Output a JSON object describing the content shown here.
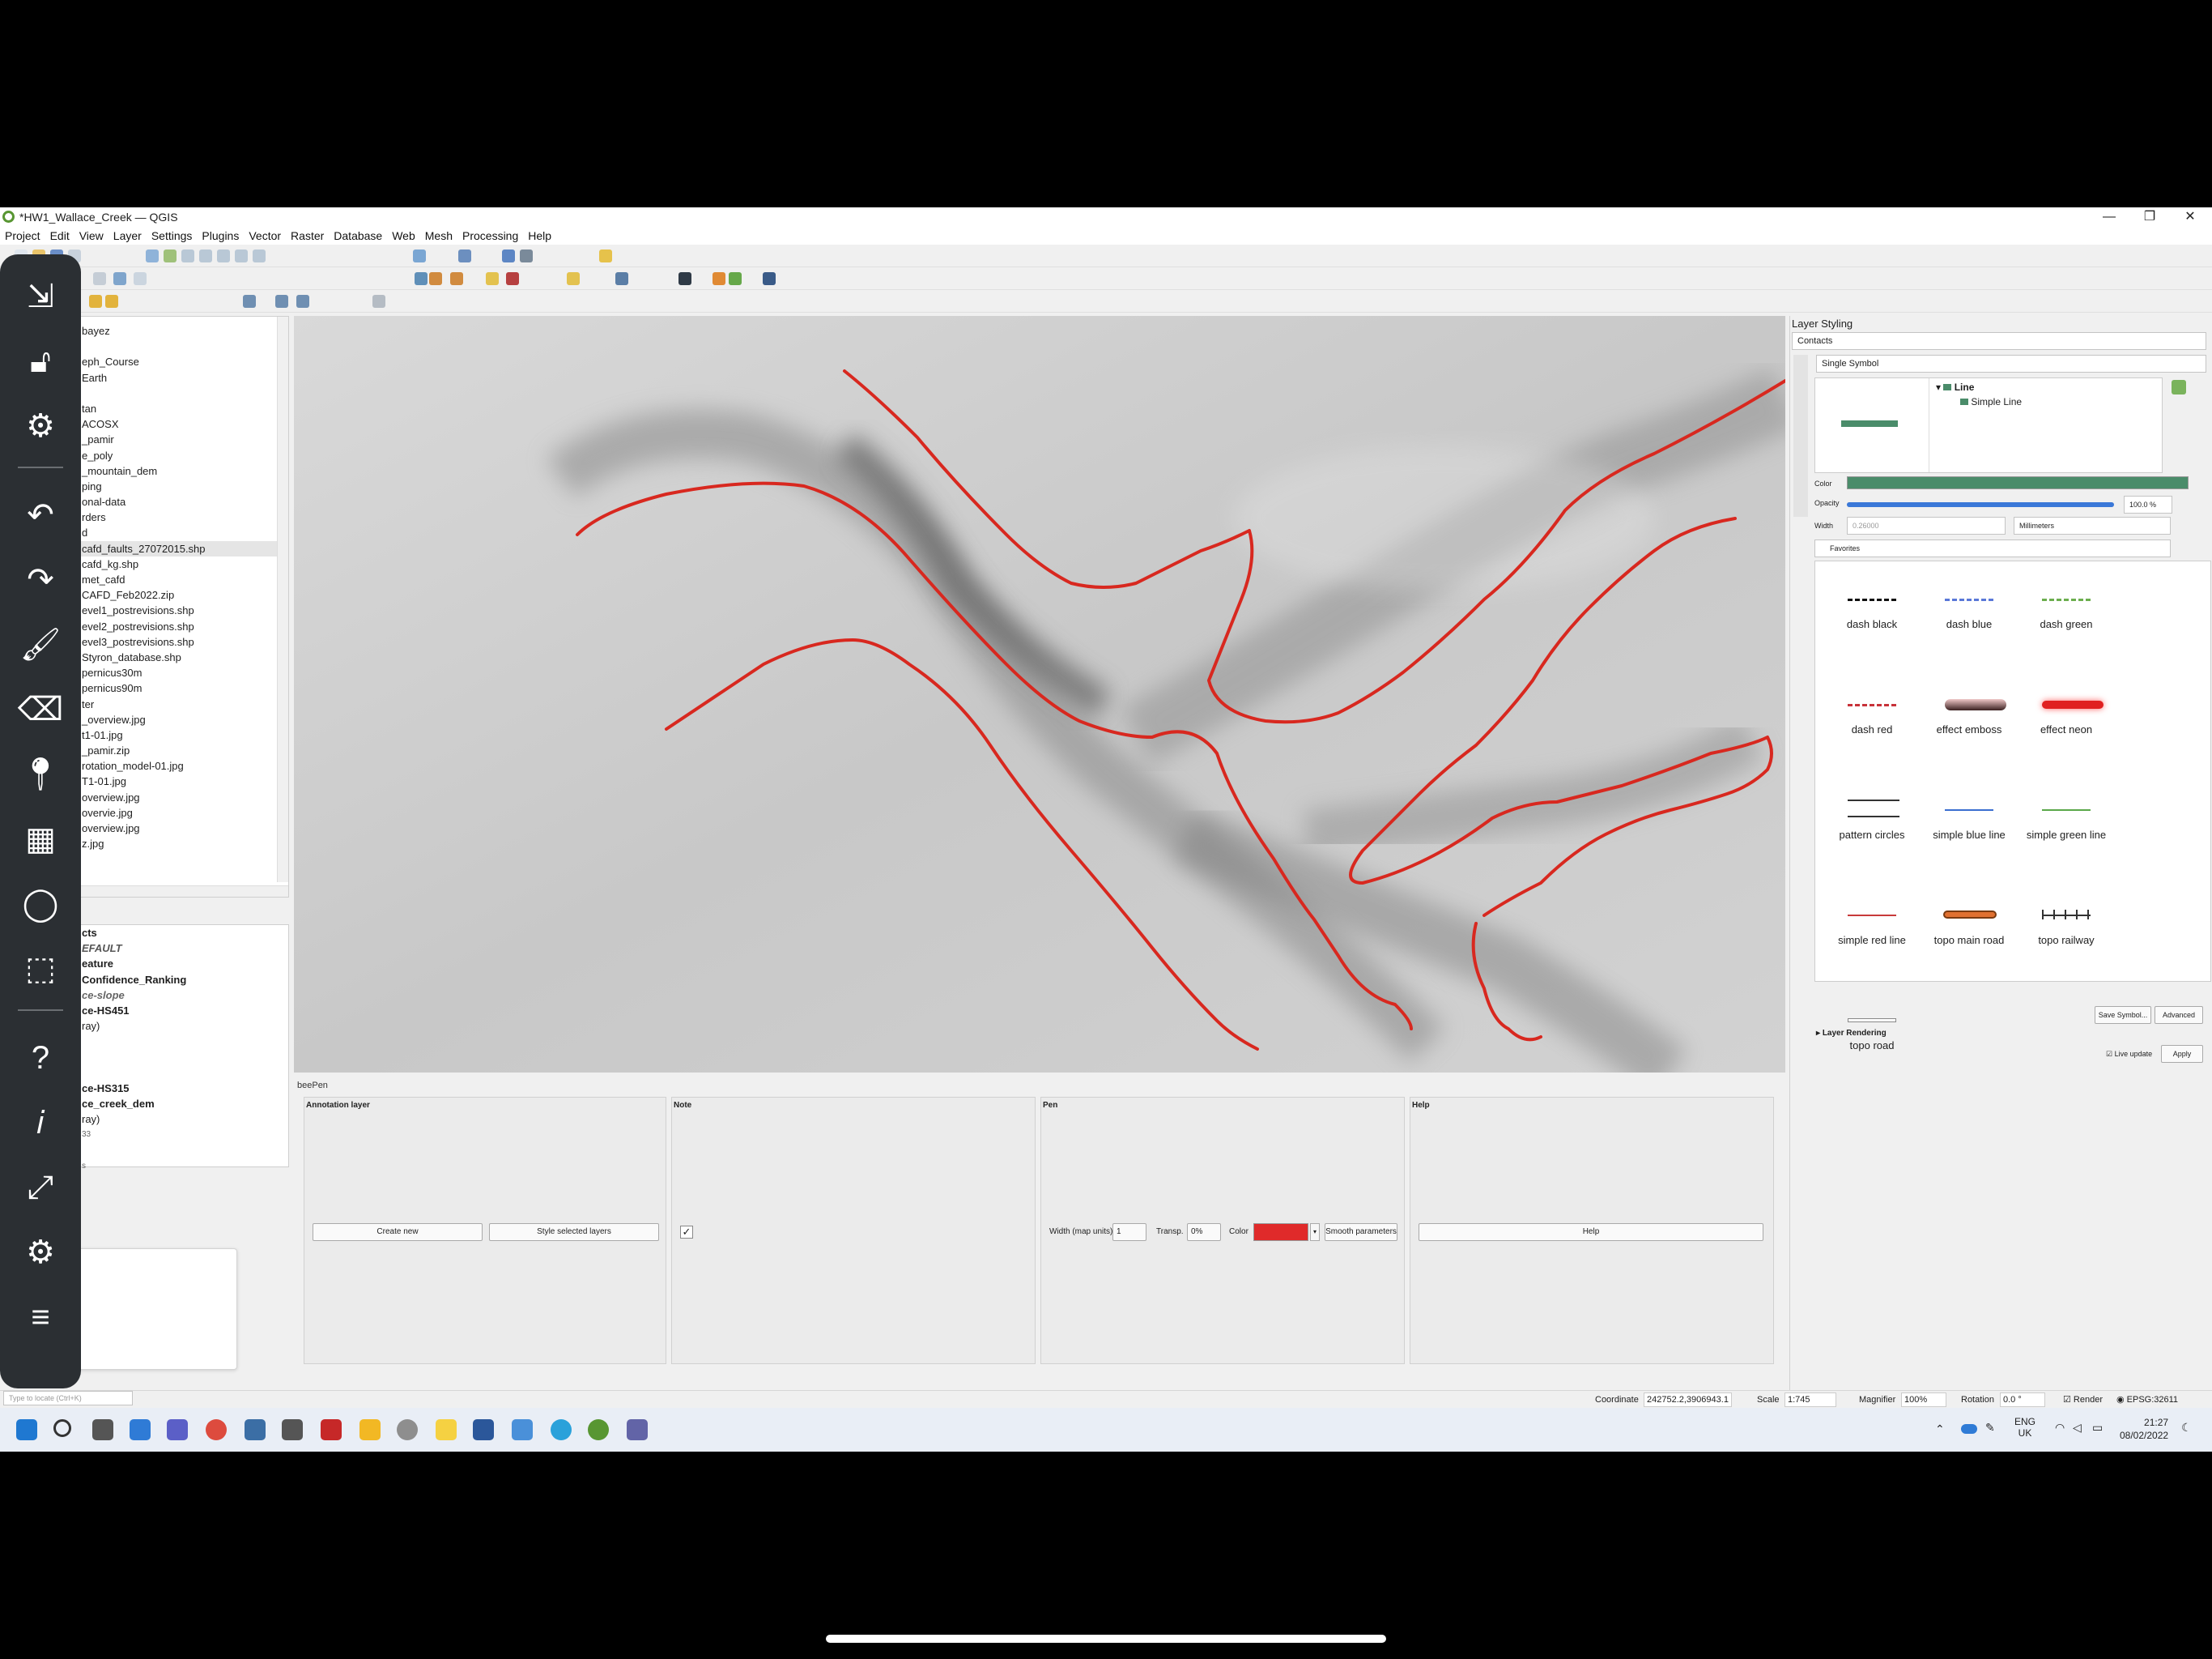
{
  "window": {
    "title": "*HW1_Wallace_Creek — QGIS"
  },
  "menu": [
    "Project",
    "Edit",
    "View",
    "Layer",
    "Settings",
    "Plugins",
    "Vector",
    "Raster",
    "Database",
    "Web",
    "Mesh",
    "Processing",
    "Help"
  ],
  "browser": {
    "items": [
      "bayez",
      "",
      "eph_Course",
      "Earth",
      "",
      "tan",
      "ACOSX",
      "_pamir",
      "e_poly",
      "_mountain_dem",
      "ping",
      "onal-data",
      "rders",
      "d",
      "cafd_faults_27072015.shp",
      "cafd_kg.shp",
      "met_cafd",
      "CAFD_Feb2022.zip",
      "evel1_postrevisions.shp",
      "evel2_postrevisions.shp",
      "evel3_postrevisions.shp",
      "Styron_database.shp",
      "pernicus30m",
      "pernicus90m",
      "ter",
      "_overview.jpg",
      "t1-01.jpg",
      "_pamir.zip",
      "rotation_model-01.jpg",
      "T1-01.jpg",
      "overview.jpg",
      "overvie.jpg",
      "overview.jpg",
      "z.jpg"
    ]
  },
  "layers": {
    "items": [
      "cts",
      "EFAULT",
      "eature",
      "Confidence_Ranking",
      "ce-slope",
      "ce-HS451",
      "ray)",
      "",
      "",
      "",
      "ce-HS315",
      "ce_creek_dem",
      "ray)",
      "33",
      "",
      "s"
    ]
  },
  "beepen_sidebar": {
    "icons": [
      "exit-icon",
      "unlock-icon",
      "settings-icon",
      "undo-icon",
      "redo-icon",
      "brush-icon",
      "eraser-icon",
      "pin-icon",
      "grid-select-icon",
      "lasso-icon",
      "rect-select-icon",
      "help-icon",
      "info-icon",
      "fullscreen-icon",
      "config-icon",
      "menu-icon"
    ]
  },
  "dock": {
    "title": "beePen",
    "annotation_layer_label": "Annotation layer",
    "note_label": "Note",
    "pen_label": "Pen",
    "help_label": "Help",
    "create_new": "Create new",
    "style_selected": "Style selected layers",
    "width_label": "Width (map units)",
    "width_value": "1",
    "transp_label": "Transp.",
    "transp_value": "0%",
    "color_label": "Color",
    "pen_color": "#e02a2a",
    "smooth_params": "Smooth parameters",
    "help_button": "Help",
    "checkbox_checked": "✓"
  },
  "styling": {
    "panel_title": "Layer Styling",
    "layer_select": "Contacts",
    "renderer": "Single Symbol",
    "tree_line": "Line",
    "tree_simple_line": "Simple Line",
    "color_label": "Color",
    "line_color": "#4a8c6a",
    "opacity_label": "Opacity",
    "opacity_value": "100.0 %",
    "opacity_fraction": 1.0,
    "width_label": "Width",
    "width_value": "0.26000",
    "unit_value": "Millimeters",
    "search_value": "Favorites",
    "symbols": [
      {
        "name": "dash  black"
      },
      {
        "name": "dash blue"
      },
      {
        "name": "dash green"
      },
      {
        "name": "dash red"
      },
      {
        "name": "effect emboss"
      },
      {
        "name": "effect neon"
      },
      {
        "name": "pattern circles"
      },
      {
        "name": "simple blue line"
      },
      {
        "name": "simple green line"
      },
      {
        "name": "simple red line"
      },
      {
        "name": "topo main road"
      },
      {
        "name": "topo railway"
      },
      {
        "name": "topo road"
      }
    ],
    "save_symbol": "Save Symbol...",
    "advanced": "Advanced",
    "layer_rendering": "Layer Rendering",
    "live_update": "Live update",
    "apply": "Apply"
  },
  "statusbar": {
    "search_placeholder": "Type to locate (Ctrl+K)",
    "coordinate_label": "Coordinate",
    "coordinate_value": "242752.2,3906943.1",
    "scale_label": "Scale",
    "scale_value": "1:745",
    "magnifier_label": "Magnifier",
    "magnifier_value": "100%",
    "rotation_label": "Rotation",
    "rotation_value": "0.0 °",
    "render_label": "Render",
    "crs": "EPSG:32611"
  },
  "taskbar": {
    "lang": "ENG",
    "region": "UK",
    "time": "21:27",
    "date": "08/02/2022"
  }
}
